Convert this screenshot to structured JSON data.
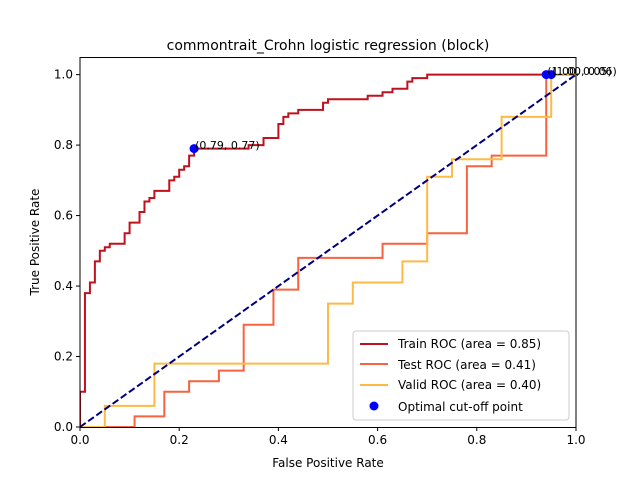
{
  "chart_data": {
    "type": "line",
    "title": "commontrait_Crohn logistic regression (block)",
    "xlabel": "False Positive Rate",
    "ylabel": "True Positive Rate",
    "xlim": [
      0.0,
      1.0
    ],
    "ylim": [
      0.0,
      1.05
    ],
    "x_ticks": [
      "0.0",
      "0.2",
      "0.4",
      "0.6",
      "0.8",
      "1.0"
    ],
    "y_ticks": [
      "0.0",
      "0.2",
      "0.4",
      "0.6",
      "0.8",
      "1.0"
    ],
    "grid": false,
    "legend_position": "lower right",
    "series": [
      {
        "name": "Train ROC (area = 0.85)",
        "color": "#c0111f",
        "x": [
          0.0,
          0.0,
          0.0,
          0.01,
          0.01,
          0.02,
          0.02,
          0.03,
          0.03,
          0.04,
          0.04,
          0.05,
          0.05,
          0.06,
          0.06,
          0.08,
          0.08,
          0.09,
          0.09,
          0.1,
          0.1,
          0.12,
          0.12,
          0.13,
          0.13,
          0.14,
          0.14,
          0.15,
          0.15,
          0.18,
          0.18,
          0.19,
          0.19,
          0.2,
          0.2,
          0.21,
          0.21,
          0.22,
          0.22,
          0.23,
          0.23,
          0.34,
          0.34,
          0.37,
          0.37,
          0.4,
          0.4,
          0.41,
          0.41,
          0.42,
          0.42,
          0.44,
          0.44,
          0.49,
          0.49,
          0.5,
          0.5,
          0.58,
          0.58,
          0.61,
          0.61,
          0.63,
          0.63,
          0.66,
          0.66,
          0.67,
          0.67,
          0.7,
          0.7,
          1.0
        ],
        "y": [
          0.0,
          0.1,
          0.1,
          0.1,
          0.38,
          0.38,
          0.41,
          0.41,
          0.47,
          0.47,
          0.5,
          0.5,
          0.51,
          0.51,
          0.52,
          0.52,
          0.52,
          0.52,
          0.55,
          0.55,
          0.58,
          0.58,
          0.61,
          0.61,
          0.64,
          0.64,
          0.65,
          0.65,
          0.67,
          0.67,
          0.7,
          0.7,
          0.71,
          0.71,
          0.73,
          0.73,
          0.74,
          0.74,
          0.77,
          0.77,
          0.79,
          0.79,
          0.8,
          0.8,
          0.82,
          0.82,
          0.86,
          0.86,
          0.88,
          0.88,
          0.89,
          0.89,
          0.9,
          0.9,
          0.92,
          0.92,
          0.93,
          0.93,
          0.94,
          0.94,
          0.95,
          0.95,
          0.96,
          0.96,
          0.98,
          0.98,
          0.99,
          0.99,
          1.0,
          1.0
        ]
      },
      {
        "name": "Test ROC (area = 0.41)",
        "color": "#f7623f",
        "x": [
          0.0,
          0.11,
          0.11,
          0.17,
          0.17,
          0.22,
          0.22,
          0.28,
          0.28,
          0.33,
          0.33,
          0.39,
          0.39,
          0.44,
          0.44,
          0.61,
          0.61,
          0.7,
          0.7,
          0.78,
          0.78,
          0.83,
          0.83,
          0.94,
          0.94,
          1.0
        ],
        "y": [
          0.0,
          0.0,
          0.03,
          0.03,
          0.1,
          0.1,
          0.13,
          0.13,
          0.16,
          0.16,
          0.29,
          0.29,
          0.39,
          0.39,
          0.48,
          0.48,
          0.52,
          0.52,
          0.55,
          0.55,
          0.74,
          0.74,
          0.77,
          0.77,
          1.0,
          1.0
        ]
      },
      {
        "name": "Valid ROC (area = 0.40)",
        "color": "#fdbb45",
        "x": [
          0.0,
          0.05,
          0.05,
          0.15,
          0.15,
          0.5,
          0.5,
          0.55,
          0.55,
          0.65,
          0.65,
          0.7,
          0.7,
          0.75,
          0.75,
          0.85,
          0.85,
          0.95,
          0.95,
          1.0
        ],
        "y": [
          0.0,
          0.0,
          0.06,
          0.06,
          0.18,
          0.18,
          0.35,
          0.35,
          0.41,
          0.41,
          0.47,
          0.47,
          0.71,
          0.71,
          0.76,
          0.76,
          0.88,
          0.88,
          1.0,
          1.0
        ]
      }
    ],
    "diagonal": {
      "color": "#00007f",
      "x": [
        0.0,
        1.0
      ],
      "y": [
        0.0,
        1.0
      ]
    },
    "cutoff_points": {
      "name": "Optimal cut-off point",
      "color": "#0000ff",
      "points": [
        {
          "x": 0.23,
          "y": 0.79,
          "label": "(0.79, 0.77)"
        },
        {
          "x": 0.95,
          "y": 1.0,
          "label": "(1.00, 0.06)"
        },
        {
          "x": 0.94,
          "y": 1.0,
          "label": "(1.00, 0.05)"
        }
      ]
    }
  }
}
